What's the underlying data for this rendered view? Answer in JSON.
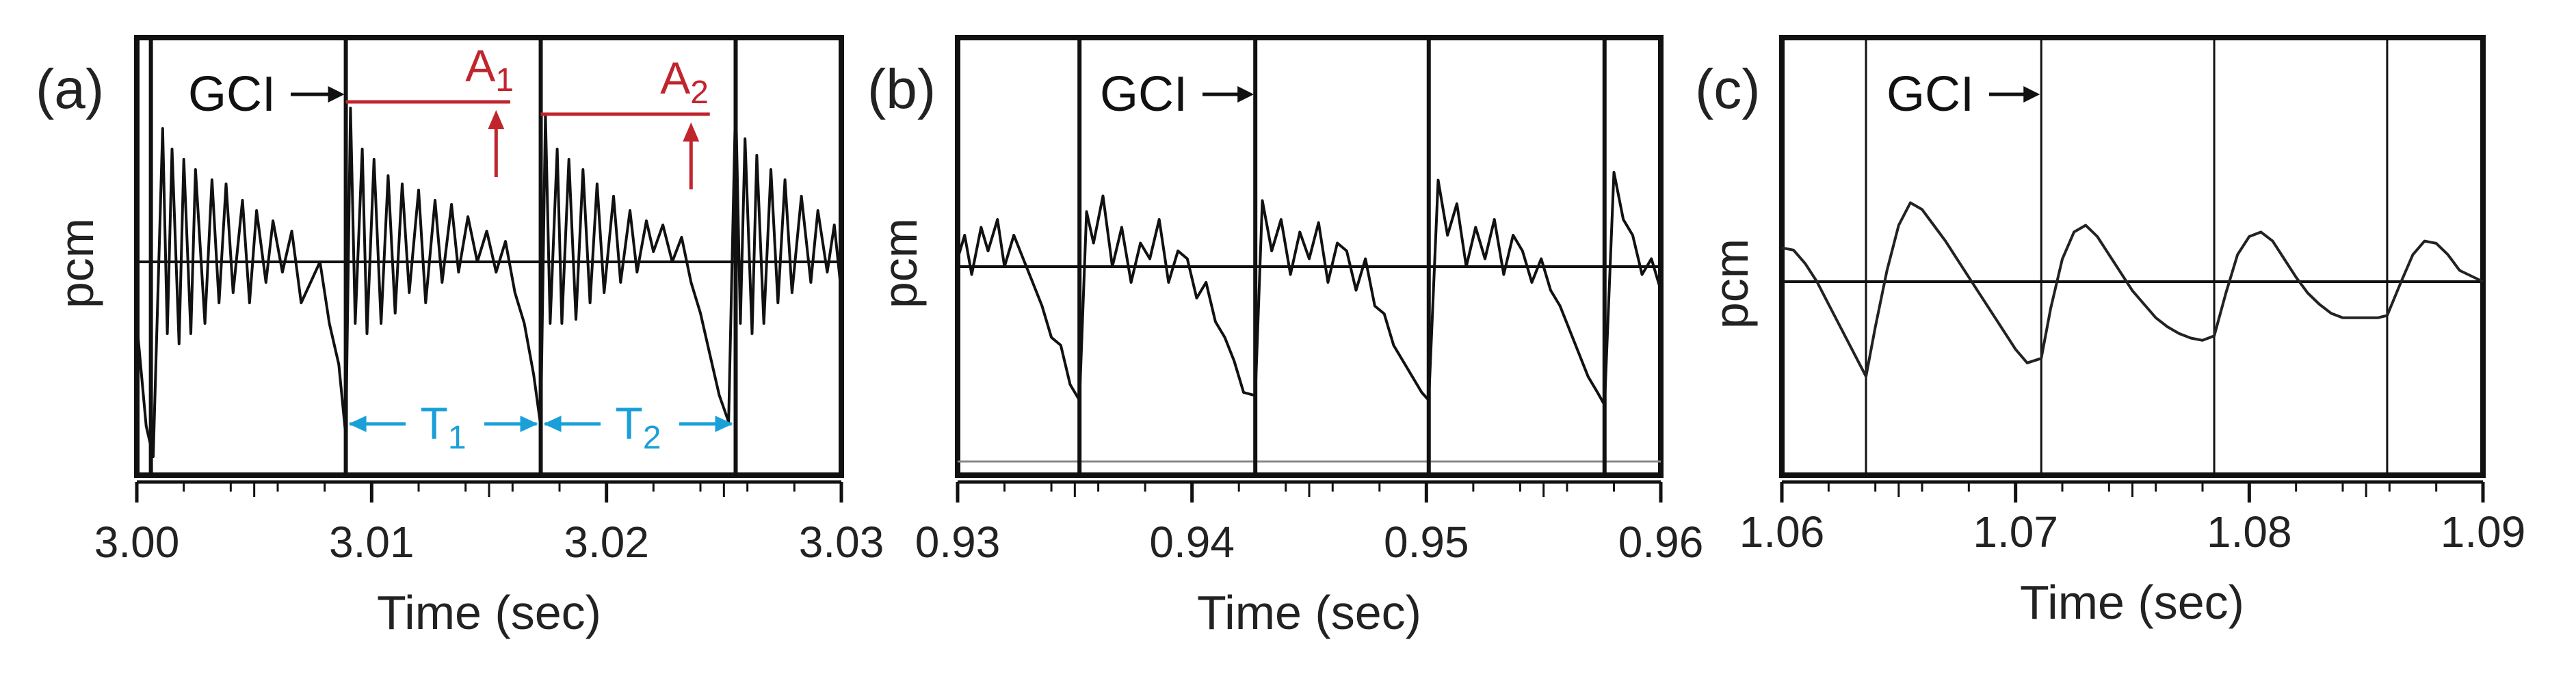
{
  "figure": {
    "panels": [
      {
        "panel_label": "(a)",
        "ylabel": "pcm",
        "xlabel": "Time (sec)",
        "gci_label": "GCI",
        "xlim": [
          3.0,
          3.03
        ],
        "xticks": [
          "3.00",
          "3.01",
          "3.02",
          "3.03"
        ],
        "baseline": 0,
        "gci_times": [
          3.0006,
          3.0089,
          3.0172,
          3.0255
        ],
        "gci_label_time": 3.0089,
        "amplitude_labels": [
          "A",
          "A"
        ],
        "amplitude_subs": [
          "1",
          "2"
        ],
        "period_labels": [
          "T",
          "T"
        ],
        "period_subs": [
          "1",
          "2"
        ]
      },
      {
        "panel_label": "(b)",
        "ylabel": "pcm",
        "xlabel": "Time (sec)",
        "gci_label": "GCI",
        "xlim": [
          0.93,
          0.96
        ],
        "xticks": [
          "0.93",
          "0.94",
          "0.95",
          "0.96"
        ],
        "baseline": 0,
        "gci_times": [
          0.9352,
          0.9427,
          0.9501,
          0.9576
        ],
        "gci_label_time": 0.9427
      },
      {
        "panel_label": "(c)",
        "ylabel": "pcm",
        "xlabel": "Time (sec)",
        "gci_label": "GCI",
        "xlim": [
          1.06,
          1.09
        ],
        "xticks": [
          "1.06",
          "1.07",
          "1.08",
          "1.09"
        ],
        "baseline": 0,
        "gci_times": [
          1.0636,
          1.0711,
          1.0785,
          1.0859
        ],
        "gci_label_time": 1.0711
      }
    ]
  },
  "chart_data": [
    {
      "type": "line",
      "title": "",
      "panel": "(a)",
      "xlabel": "Time (sec)",
      "ylabel": "pcm",
      "xlim": [
        3.0,
        3.03
      ],
      "ylim": [
        -1.0,
        1.0
      ],
      "x_ticks": [
        "3.00",
        "3.01",
        "3.02",
        "3.03"
      ],
      "series": [
        {
          "x": [
            3.0,
            3.0004,
            3.0007,
            3.0011,
            3.0013,
            3.0015,
            3.0018,
            3.002,
            3.0023,
            3.0025,
            3.0029,
            3.0032,
            3.0035,
            3.0038,
            3.0041,
            3.0045,
            3.0048,
            3.0051,
            3.0055,
            3.0058,
            3.0062,
            3.0066,
            3.007,
            3.0074,
            3.0078,
            3.0082,
            3.0086,
            3.0089,
            3.0091,
            3.0093,
            3.0096,
            3.0098,
            3.0101,
            3.0104,
            3.0107,
            3.011,
            3.0113,
            3.0116,
            3.012,
            3.0123,
            3.0127,
            3.013,
            3.0134,
            3.0137,
            3.0141,
            3.0145,
            3.0149,
            3.0153,
            3.0157,
            3.0161,
            3.0165,
            3.0169,
            3.0172,
            3.0174,
            3.0176,
            3.0179,
            3.0181,
            3.0184,
            3.0187,
            3.019,
            3.0193,
            3.0196,
            3.0199,
            3.0203,
            3.0206,
            3.021,
            3.0213,
            3.0217,
            3.022,
            3.0224,
            3.0228,
            3.0232,
            3.0236,
            3.024,
            3.0244,
            3.0248,
            3.0252,
            3.0255,
            3.0257,
            3.0259,
            3.0262,
            3.0264,
            3.0267,
            3.027,
            3.0273,
            3.0276,
            3.0279,
            3.0283,
            3.0287,
            3.029,
            3.0294,
            3.0297,
            3.03
          ],
          "y": [
            -0.3,
            -0.8,
            -0.95,
            0.65,
            -0.35,
            0.55,
            -0.4,
            0.5,
            -0.35,
            0.45,
            -0.3,
            0.4,
            -0.2,
            0.38,
            -0.15,
            0.3,
            -0.2,
            0.25,
            -0.1,
            0.2,
            -0.05,
            0.15,
            -0.2,
            -0.1,
            0.0,
            -0.3,
            -0.5,
            -0.85,
            0.75,
            -0.3,
            0.55,
            -0.35,
            0.5,
            -0.3,
            0.42,
            -0.25,
            0.38,
            -0.15,
            0.35,
            -0.2,
            0.3,
            -0.1,
            0.28,
            -0.05,
            0.22,
            0.0,
            0.15,
            -0.05,
            0.1,
            -0.15,
            -0.3,
            -0.55,
            -0.8,
            0.72,
            -0.3,
            0.55,
            -0.3,
            0.5,
            -0.28,
            0.45,
            -0.2,
            0.38,
            -0.15,
            0.32,
            -0.1,
            0.25,
            -0.05,
            0.2,
            0.05,
            0.18,
            0.0,
            0.12,
            -0.1,
            -0.25,
            -0.45,
            -0.65,
            -0.78,
            0.8,
            -0.3,
            0.6,
            -0.35,
            0.52,
            -0.3,
            0.45,
            -0.2,
            0.4,
            -0.15,
            0.32,
            -0.1,
            0.25,
            -0.05,
            0.18,
            -0.15
          ]
        }
      ],
      "amplitude_annotations": [
        {
          "label": "A",
          "subscript": "1",
          "x_start": 3.0089,
          "x_end": 3.0159,
          "y": 0.78,
          "arrow_x": 3.0153
        },
        {
          "label": "A",
          "subscript": "2",
          "x_start": 3.0172,
          "x_end": 3.0244,
          "y": 0.72,
          "arrow_x": 3.0236
        }
      ],
      "period_annotations": [
        {
          "label": "T",
          "subscript": "1",
          "x_start": 3.0089,
          "x_end": 3.0172
        },
        {
          "label": "T",
          "subscript": "2",
          "x_start": 3.0172,
          "x_end": 3.0255
        }
      ]
    },
    {
      "type": "line",
      "title": "",
      "panel": "(b)",
      "xlabel": "Time (sec)",
      "ylabel": "pcm",
      "xlim": [
        0.93,
        0.96
      ],
      "ylim": [
        -1.0,
        1.0
      ],
      "x_ticks": [
        "0.93",
        "0.94",
        "0.95",
        "0.96"
      ],
      "series": [
        {
          "x": [
            0.93,
            0.9303,
            0.9306,
            0.931,
            0.9313,
            0.9317,
            0.932,
            0.9324,
            0.9328,
            0.9332,
            0.9336,
            0.934,
            0.9344,
            0.9348,
            0.9352,
            0.9355,
            0.9358,
            0.9362,
            0.9366,
            0.937,
            0.9374,
            0.9378,
            0.9382,
            0.9386,
            0.939,
            0.9394,
            0.9398,
            0.9402,
            0.9406,
            0.941,
            0.9414,
            0.9418,
            0.9422,
            0.9427,
            0.943,
            0.9434,
            0.9438,
            0.9442,
            0.9446,
            0.945,
            0.9454,
            0.9458,
            0.9462,
            0.9466,
            0.947,
            0.9474,
            0.9478,
            0.9482,
            0.9486,
            0.949,
            0.9494,
            0.9498,
            0.9501,
            0.9505,
            0.9509,
            0.9513,
            0.9517,
            0.9521,
            0.9525,
            0.9529,
            0.9533,
            0.9537,
            0.9541,
            0.9545,
            0.9549,
            0.9553,
            0.9557,
            0.9561,
            0.9565,
            0.9569,
            0.9573,
            0.9576,
            0.958,
            0.9584,
            0.9588,
            0.9592,
            0.9596,
            0.96
          ],
          "y": [
            0.05,
            0.2,
            -0.05,
            0.25,
            0.1,
            0.3,
            0.0,
            0.2,
            0.05,
            -0.1,
            -0.25,
            -0.45,
            -0.5,
            -0.75,
            -0.85,
            0.35,
            0.15,
            0.45,
            0.0,
            0.25,
            -0.1,
            0.15,
            0.05,
            0.3,
            -0.1,
            0.1,
            0.05,
            -0.2,
            -0.1,
            -0.35,
            -0.45,
            -0.6,
            -0.8,
            -0.82,
            0.42,
            0.1,
            0.3,
            -0.05,
            0.22,
            0.05,
            0.28,
            -0.1,
            0.15,
            0.1,
            -0.15,
            0.05,
            -0.25,
            -0.3,
            -0.5,
            -0.6,
            -0.7,
            -0.8,
            -0.85,
            0.55,
            0.2,
            0.4,
            0.0,
            0.25,
            0.05,
            0.3,
            -0.05,
            0.2,
            0.1,
            -0.1,
            0.05,
            -0.15,
            -0.25,
            -0.4,
            -0.55,
            -0.7,
            -0.8,
            -0.88,
            0.6,
            0.3,
            0.2,
            -0.05,
            0.05,
            -0.15
          ]
        }
      ]
    },
    {
      "type": "line",
      "title": "",
      "panel": "(c)",
      "xlabel": "Time (sec)",
      "ylabel": "pcm",
      "xlim": [
        1.06,
        1.09
      ],
      "ylim": [
        -1.0,
        1.0
      ],
      "x_ticks": [
        "1.06",
        "1.07",
        "1.08",
        "1.09"
      ],
      "series": [
        {
          "x": [
            1.06,
            1.0605,
            1.061,
            1.0615,
            1.062,
            1.0625,
            1.063,
            1.0636,
            1.064,
            1.0645,
            1.065,
            1.0655,
            1.066,
            1.0665,
            1.067,
            1.0675,
            1.068,
            1.0685,
            1.069,
            1.0695,
            1.07,
            1.0705,
            1.0711,
            1.0715,
            1.072,
            1.0725,
            1.073,
            1.0735,
            1.074,
            1.0745,
            1.075,
            1.0755,
            1.076,
            1.0765,
            1.077,
            1.0775,
            1.078,
            1.0785,
            1.079,
            1.0795,
            1.08,
            1.0805,
            1.081,
            1.0815,
            1.082,
            1.0825,
            1.083,
            1.0835,
            1.084,
            1.0845,
            1.085,
            1.0855,
            1.0859,
            1.0865,
            1.087,
            1.0875,
            1.088,
            1.0885,
            1.089,
            1.09
          ],
          "y": [
            0.15,
            0.14,
            0.08,
            0.0,
            -0.1,
            -0.2,
            -0.3,
            -0.42,
            -0.2,
            0.05,
            0.25,
            0.35,
            0.32,
            0.25,
            0.18,
            0.1,
            0.02,
            -0.06,
            -0.14,
            -0.22,
            -0.3,
            -0.36,
            -0.34,
            -0.12,
            0.1,
            0.22,
            0.25,
            0.2,
            0.12,
            0.04,
            -0.04,
            -0.1,
            -0.16,
            -0.2,
            -0.23,
            -0.25,
            -0.26,
            -0.24,
            -0.05,
            0.12,
            0.2,
            0.22,
            0.18,
            0.1,
            0.02,
            -0.05,
            -0.1,
            -0.14,
            -0.16,
            -0.16,
            -0.16,
            -0.16,
            -0.15,
            0.0,
            0.12,
            0.18,
            0.17,
            0.12,
            0.05,
            0.0
          ]
        }
      ]
    }
  ]
}
